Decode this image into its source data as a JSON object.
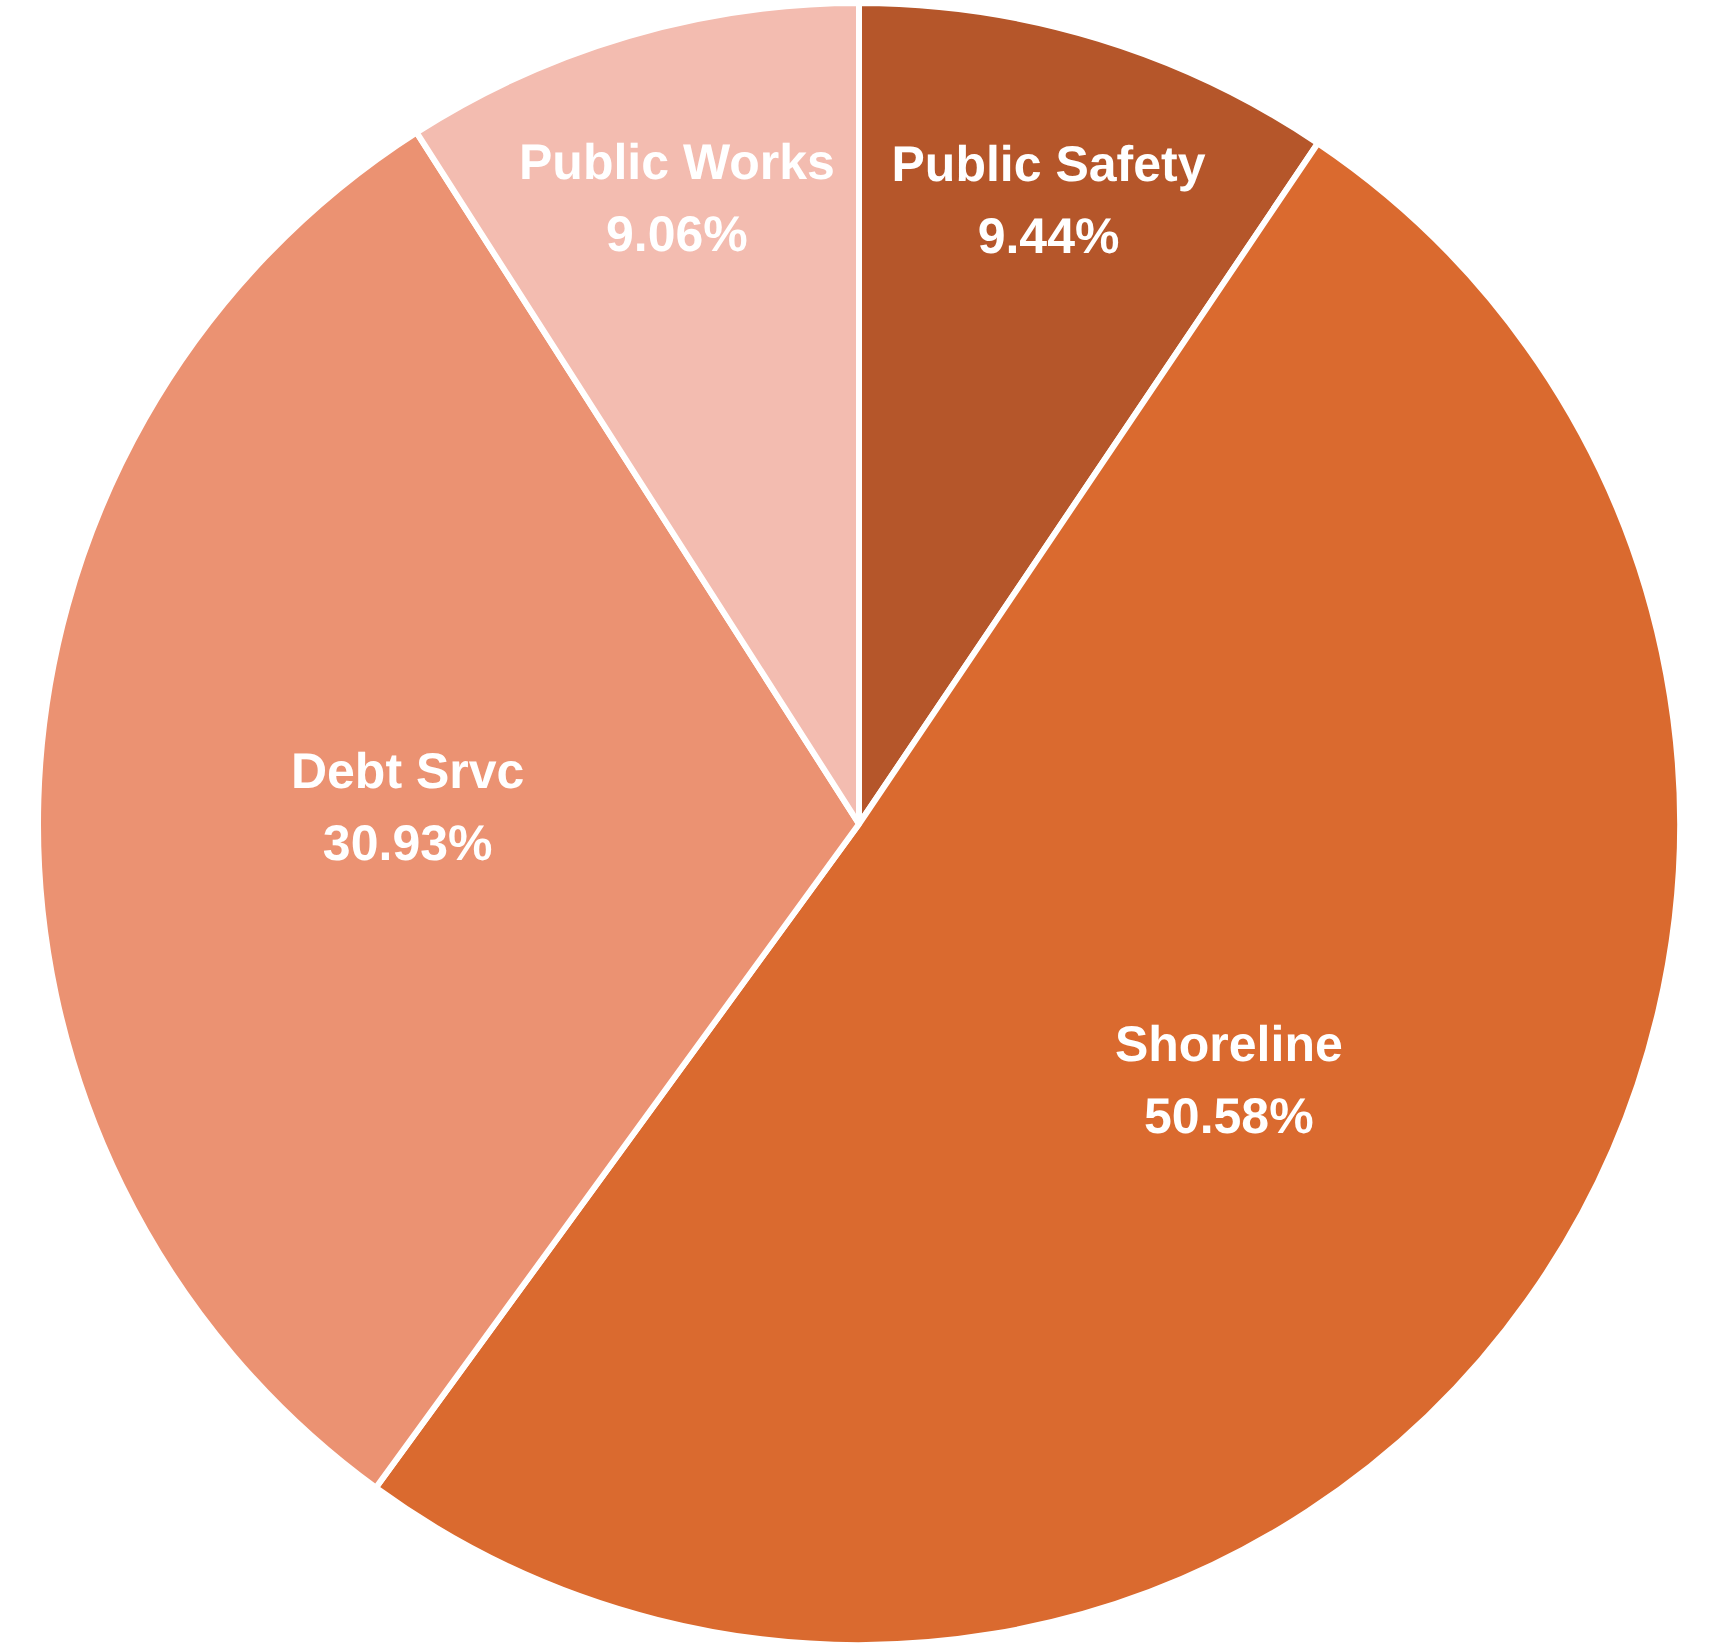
{
  "chart_data": {
    "type": "pie",
    "categories": [
      "Public Safety",
      "Shoreline",
      "Debt Srvc",
      "Public Works"
    ],
    "values": [
      9.44,
      50.58,
      30.93,
      9.06
    ],
    "colors": [
      "#b5562a",
      "#da6a2f",
      "#eb9272",
      "#f3bcb0"
    ],
    "value_labels": [
      "9.44%",
      "50.58%",
      "30.93%",
      "9.06%"
    ],
    "legend": false
  }
}
